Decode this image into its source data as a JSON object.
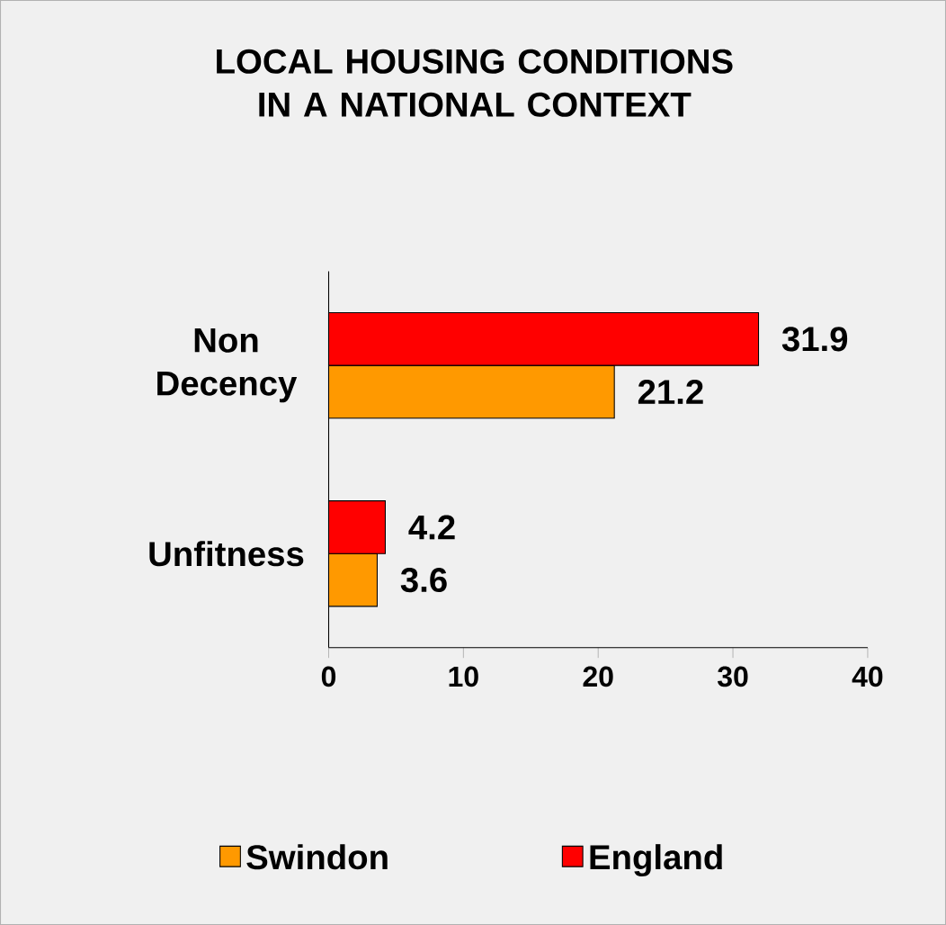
{
  "chart_data": {
    "type": "bar",
    "orientation": "horizontal",
    "title": "LOCAL HOUSING CONDITIONS IN A NATIONAL CONTEXT",
    "categories": [
      "Non Decency",
      "Unfitness"
    ],
    "series": [
      {
        "name": "Swindon",
        "color": "#ff9900",
        "values": [
          21.2,
          3.6
        ]
      },
      {
        "name": "England",
        "color": "#ff0000",
        "values": [
          31.9,
          4.2
        ]
      }
    ],
    "xlim": [
      0,
      40
    ],
    "xticks": [
      0,
      10,
      20,
      30,
      40
    ],
    "data_labels": true,
    "legend": "bottom"
  }
}
